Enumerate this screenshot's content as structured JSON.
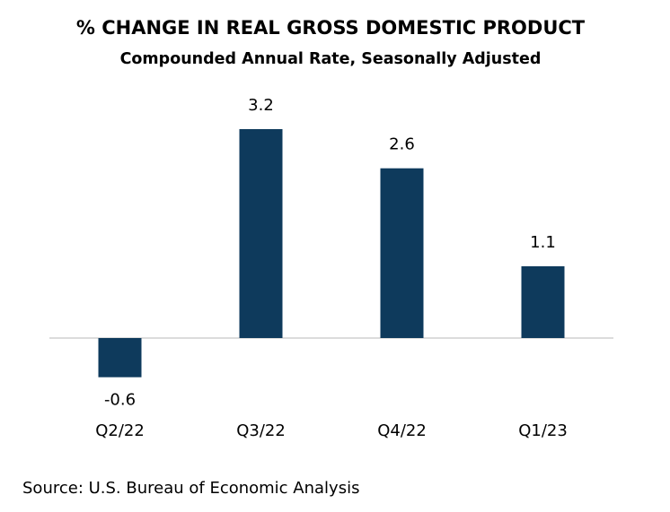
{
  "chart_data": {
    "type": "bar",
    "title": "% CHANGE IN REAL GROSS DOMESTIC PRODUCT",
    "subtitle": "Compounded Annual Rate, Seasonally Adjusted",
    "categories": [
      "Q2/22",
      "Q3/22",
      "Q4/22",
      "Q1/23"
    ],
    "values": [
      -0.6,
      3.2,
      2.6,
      1.1
    ],
    "color": "#0e3a5c",
    "source": "Source: U.S. Bureau of Economic Analysis"
  }
}
